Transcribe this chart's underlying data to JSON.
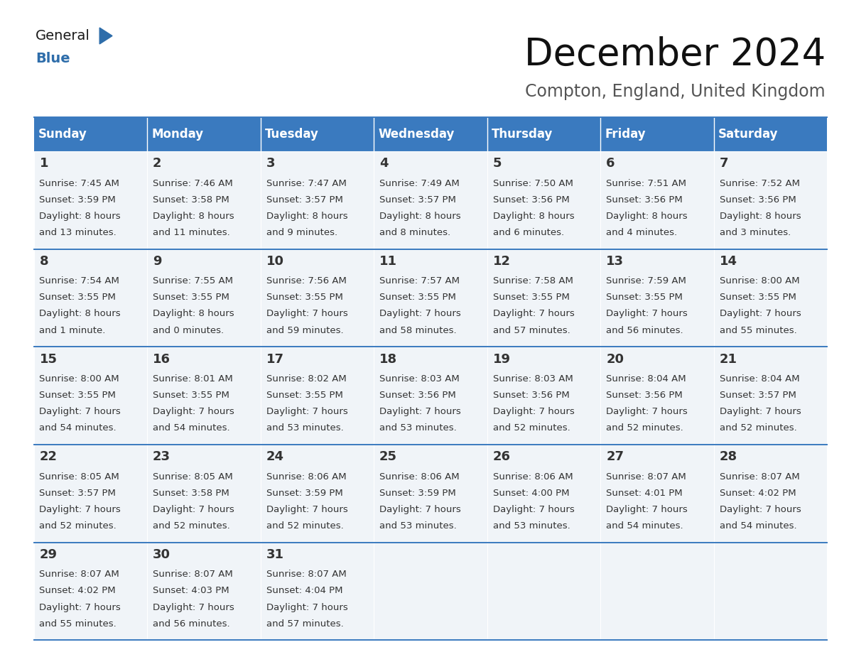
{
  "title": "December 2024",
  "subtitle": "Compton, England, United Kingdom",
  "header_color": "#3a7abf",
  "header_text_color": "#ffffff",
  "cell_bg_color": "#f0f4f8",
  "border_color": "#3a7abf",
  "days_of_week": [
    "Sunday",
    "Monday",
    "Tuesday",
    "Wednesday",
    "Thursday",
    "Friday",
    "Saturday"
  ],
  "calendar_data": [
    [
      {
        "day": 1,
        "sunrise": "7:45 AM",
        "sunset": "3:59 PM",
        "daylight_hours": "8 hours",
        "daylight_mins": "and 13 minutes."
      },
      {
        "day": 2,
        "sunrise": "7:46 AM",
        "sunset": "3:58 PM",
        "daylight_hours": "8 hours",
        "daylight_mins": "and 11 minutes."
      },
      {
        "day": 3,
        "sunrise": "7:47 AM",
        "sunset": "3:57 PM",
        "daylight_hours": "8 hours",
        "daylight_mins": "and 9 minutes."
      },
      {
        "day": 4,
        "sunrise": "7:49 AM",
        "sunset": "3:57 PM",
        "daylight_hours": "8 hours",
        "daylight_mins": "and 8 minutes."
      },
      {
        "day": 5,
        "sunrise": "7:50 AM",
        "sunset": "3:56 PM",
        "daylight_hours": "8 hours",
        "daylight_mins": "and 6 minutes."
      },
      {
        "day": 6,
        "sunrise": "7:51 AM",
        "sunset": "3:56 PM",
        "daylight_hours": "8 hours",
        "daylight_mins": "and 4 minutes."
      },
      {
        "day": 7,
        "sunrise": "7:52 AM",
        "sunset": "3:56 PM",
        "daylight_hours": "8 hours",
        "daylight_mins": "and 3 minutes."
      }
    ],
    [
      {
        "day": 8,
        "sunrise": "7:54 AM",
        "sunset": "3:55 PM",
        "daylight_hours": "8 hours",
        "daylight_mins": "and 1 minute."
      },
      {
        "day": 9,
        "sunrise": "7:55 AM",
        "sunset": "3:55 PM",
        "daylight_hours": "8 hours",
        "daylight_mins": "and 0 minutes."
      },
      {
        "day": 10,
        "sunrise": "7:56 AM",
        "sunset": "3:55 PM",
        "daylight_hours": "7 hours",
        "daylight_mins": "and 59 minutes."
      },
      {
        "day": 11,
        "sunrise": "7:57 AM",
        "sunset": "3:55 PM",
        "daylight_hours": "7 hours",
        "daylight_mins": "and 58 minutes."
      },
      {
        "day": 12,
        "sunrise": "7:58 AM",
        "sunset": "3:55 PM",
        "daylight_hours": "7 hours",
        "daylight_mins": "and 57 minutes."
      },
      {
        "day": 13,
        "sunrise": "7:59 AM",
        "sunset": "3:55 PM",
        "daylight_hours": "7 hours",
        "daylight_mins": "and 56 minutes."
      },
      {
        "day": 14,
        "sunrise": "8:00 AM",
        "sunset": "3:55 PM",
        "daylight_hours": "7 hours",
        "daylight_mins": "and 55 minutes."
      }
    ],
    [
      {
        "day": 15,
        "sunrise": "8:00 AM",
        "sunset": "3:55 PM",
        "daylight_hours": "7 hours",
        "daylight_mins": "and 54 minutes."
      },
      {
        "day": 16,
        "sunrise": "8:01 AM",
        "sunset": "3:55 PM",
        "daylight_hours": "7 hours",
        "daylight_mins": "and 54 minutes."
      },
      {
        "day": 17,
        "sunrise": "8:02 AM",
        "sunset": "3:55 PM",
        "daylight_hours": "7 hours",
        "daylight_mins": "and 53 minutes."
      },
      {
        "day": 18,
        "sunrise": "8:03 AM",
        "sunset": "3:56 PM",
        "daylight_hours": "7 hours",
        "daylight_mins": "and 53 minutes."
      },
      {
        "day": 19,
        "sunrise": "8:03 AM",
        "sunset": "3:56 PM",
        "daylight_hours": "7 hours",
        "daylight_mins": "and 52 minutes."
      },
      {
        "day": 20,
        "sunrise": "8:04 AM",
        "sunset": "3:56 PM",
        "daylight_hours": "7 hours",
        "daylight_mins": "and 52 minutes."
      },
      {
        "day": 21,
        "sunrise": "8:04 AM",
        "sunset": "3:57 PM",
        "daylight_hours": "7 hours",
        "daylight_mins": "and 52 minutes."
      }
    ],
    [
      {
        "day": 22,
        "sunrise": "8:05 AM",
        "sunset": "3:57 PM",
        "daylight_hours": "7 hours",
        "daylight_mins": "and 52 minutes."
      },
      {
        "day": 23,
        "sunrise": "8:05 AM",
        "sunset": "3:58 PM",
        "daylight_hours": "7 hours",
        "daylight_mins": "and 52 minutes."
      },
      {
        "day": 24,
        "sunrise": "8:06 AM",
        "sunset": "3:59 PM",
        "daylight_hours": "7 hours",
        "daylight_mins": "and 52 minutes."
      },
      {
        "day": 25,
        "sunrise": "8:06 AM",
        "sunset": "3:59 PM",
        "daylight_hours": "7 hours",
        "daylight_mins": "and 53 minutes."
      },
      {
        "day": 26,
        "sunrise": "8:06 AM",
        "sunset": "4:00 PM",
        "daylight_hours": "7 hours",
        "daylight_mins": "and 53 minutes."
      },
      {
        "day": 27,
        "sunrise": "8:07 AM",
        "sunset": "4:01 PM",
        "daylight_hours": "7 hours",
        "daylight_mins": "and 54 minutes."
      },
      {
        "day": 28,
        "sunrise": "8:07 AM",
        "sunset": "4:02 PM",
        "daylight_hours": "7 hours",
        "daylight_mins": "and 54 minutes."
      }
    ],
    [
      {
        "day": 29,
        "sunrise": "8:07 AM",
        "sunset": "4:02 PM",
        "daylight_hours": "7 hours",
        "daylight_mins": "and 55 minutes."
      },
      {
        "day": 30,
        "sunrise": "8:07 AM",
        "sunset": "4:03 PM",
        "daylight_hours": "7 hours",
        "daylight_mins": "and 56 minutes."
      },
      {
        "day": 31,
        "sunrise": "8:07 AM",
        "sunset": "4:04 PM",
        "daylight_hours": "7 hours",
        "daylight_mins": "and 57 minutes."
      },
      null,
      null,
      null,
      null
    ]
  ],
  "logo_color_general": "#1a1a1a",
  "logo_color_blue": "#2e6daa",
  "title_fontsize": 38,
  "subtitle_fontsize": 17,
  "day_header_fontsize": 12,
  "day_number_fontsize": 13,
  "cell_text_fontsize": 9.5
}
